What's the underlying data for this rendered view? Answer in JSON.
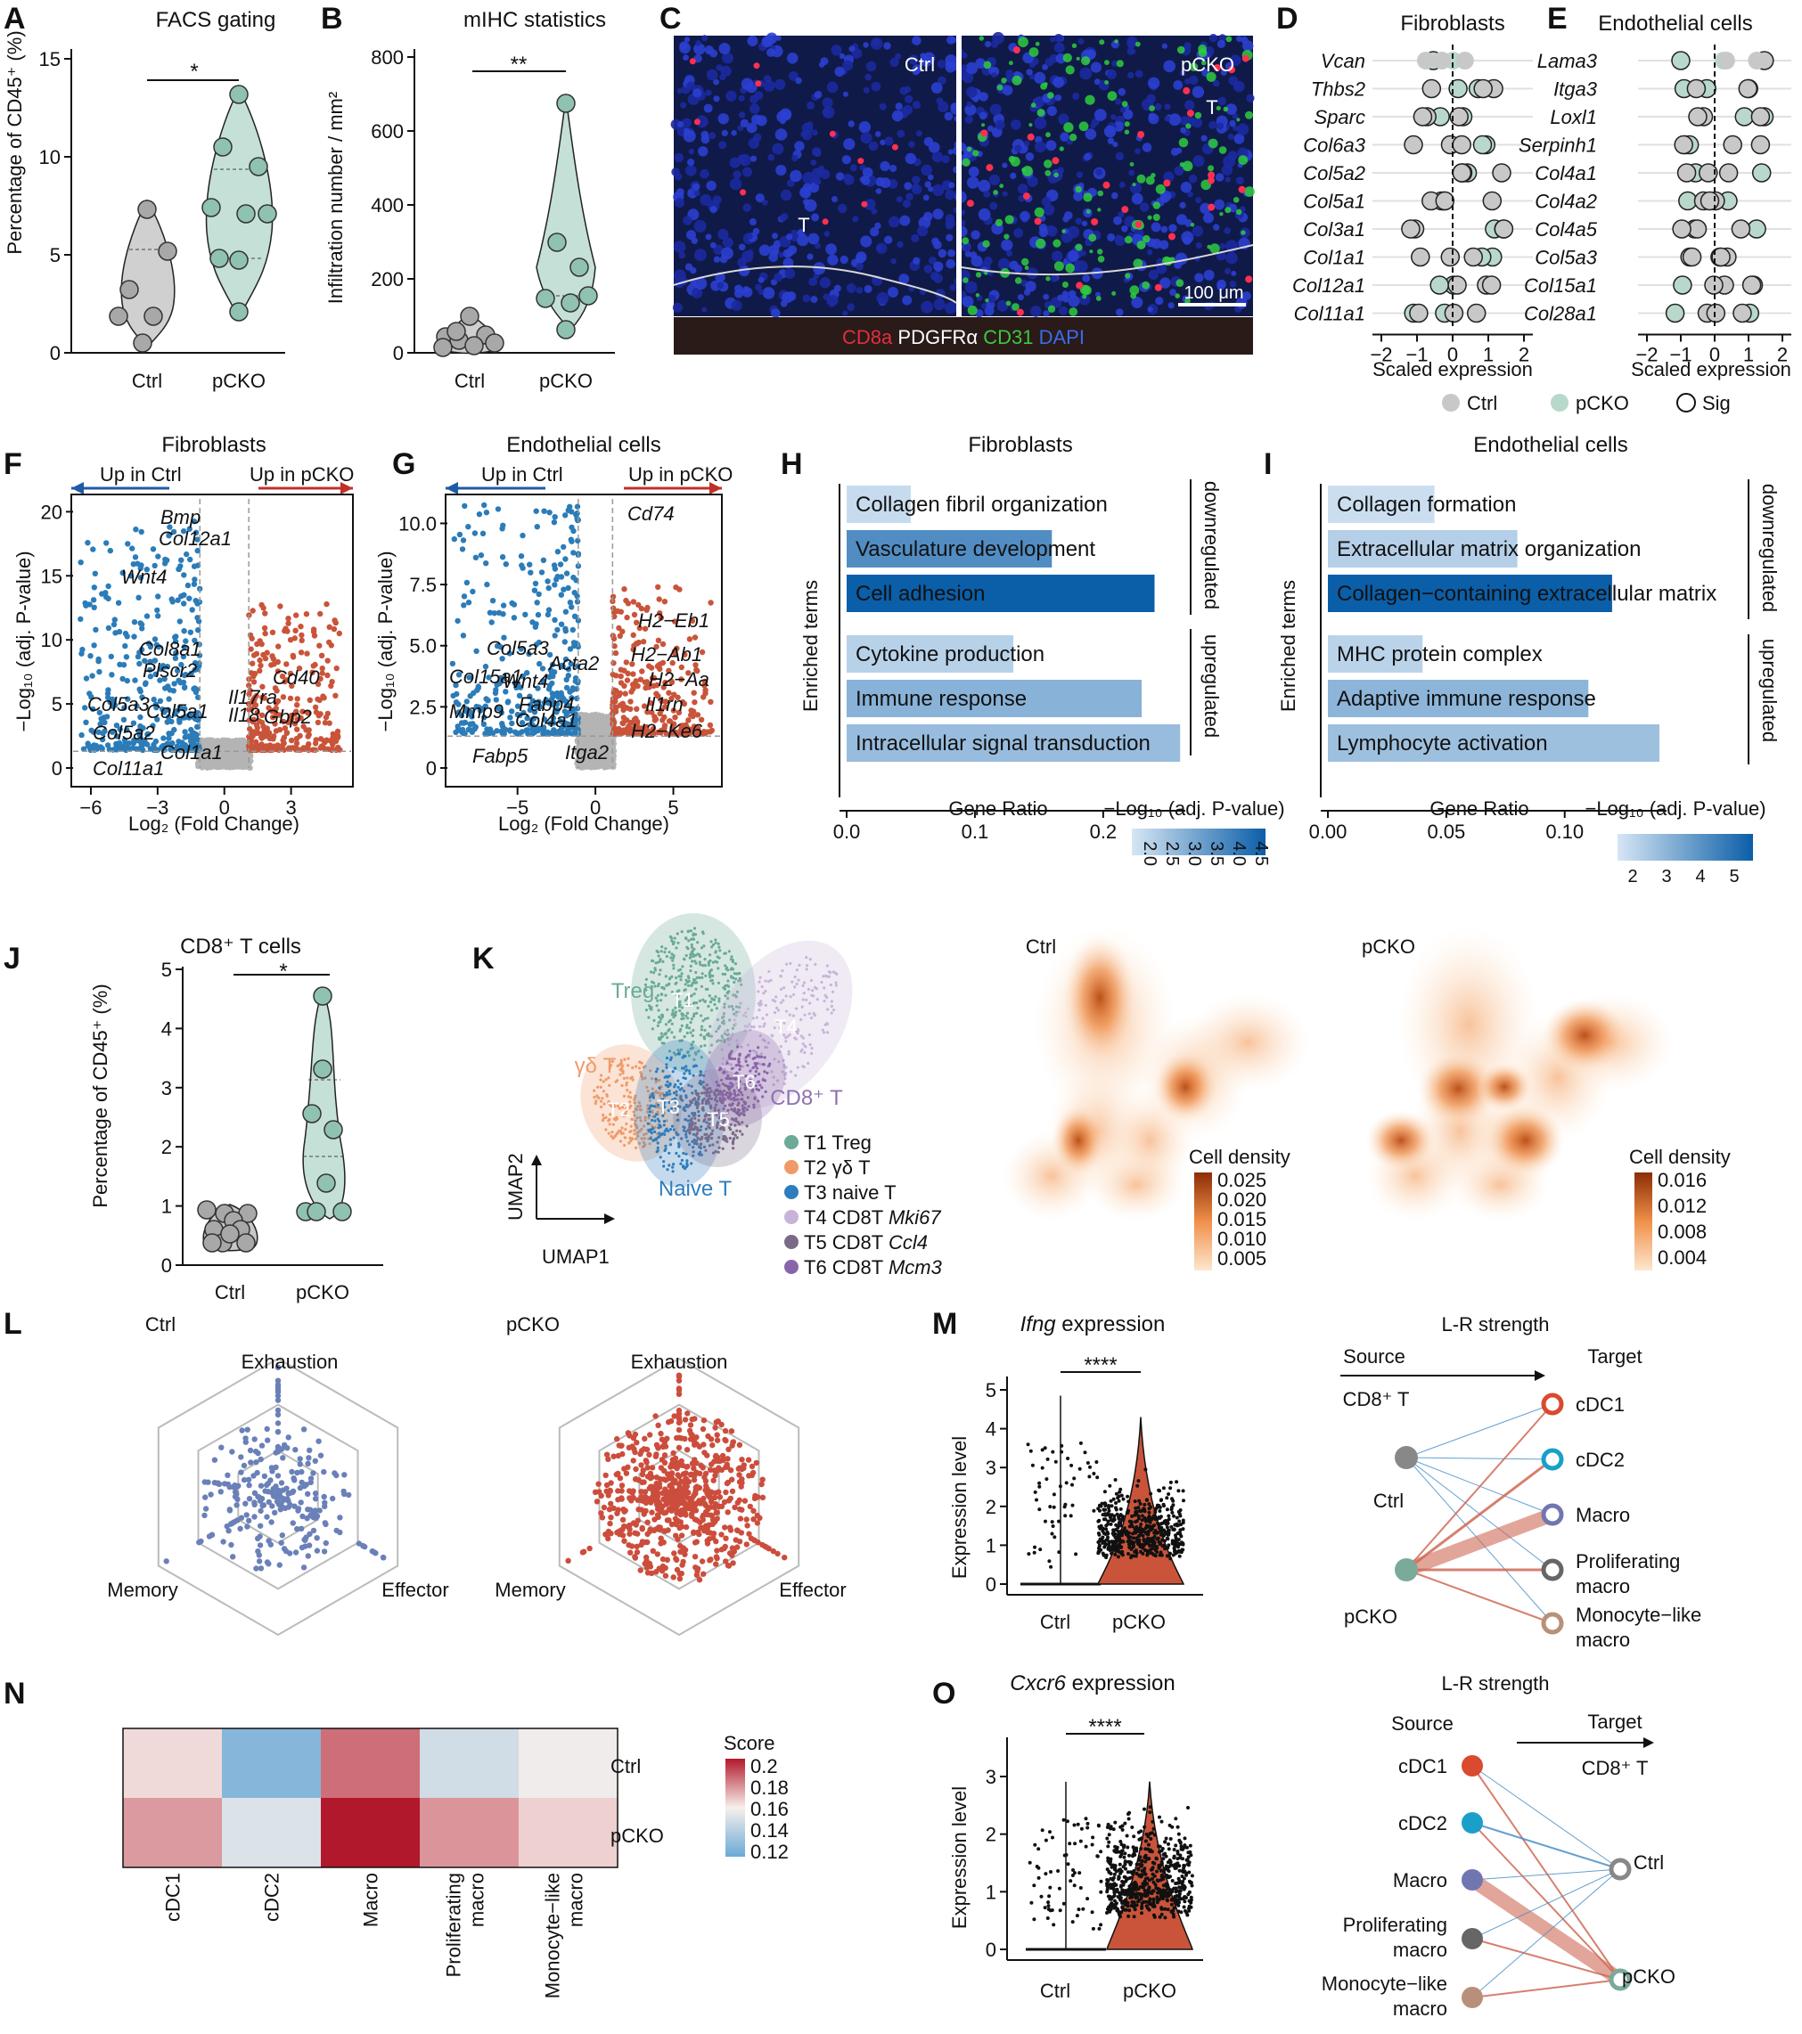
{
  "panels": {
    "A": {
      "letter": "A",
      "title": "FACS gating",
      "ylabel": "Percentage of CD45⁺ (%)",
      "sig": "*",
      "groups": [
        "Ctrl",
        "pCKO"
      ],
      "yticks": [
        "0",
        "5",
        "10",
        "15"
      ]
    },
    "B": {
      "letter": "B",
      "title": "mIHC statistics",
      "ylabel": "Infiltration number / mm²",
      "sig": "**",
      "groups": [
        "Ctrl",
        "pCKO"
      ],
      "yticks": [
        "0",
        "200",
        "400",
        "600",
        "800"
      ]
    },
    "C": {
      "letter": "C",
      "img_left_label": "Ctrl",
      "img_right_label": "pCKO",
      "tumor_label": "T",
      "scale": "100 μm",
      "legend": [
        {
          "text": "CD8a",
          "color": "#e03040"
        },
        {
          "text": "PDGFRα",
          "color": "#ffffff"
        },
        {
          "text": "CD31",
          "color": "#3cc83c"
        },
        {
          "text": "DAPI",
          "color": "#3a6cf0"
        }
      ]
    },
    "D": {
      "letter": "D",
      "title": "Fibroblasts",
      "xlabel": "Scaled expression",
      "genes": [
        "Vcan",
        "Thbs2",
        "Sparc",
        "Col6a3",
        "Col5a2",
        "Col5a1",
        "Col3a1",
        "Col1a1",
        "Col12a1",
        "Col11a1"
      ],
      "xticks": [
        "−2",
        "−1",
        "0",
        "1",
        "2"
      ]
    },
    "E": {
      "letter": "E",
      "title": "Endothelial cells",
      "xlabel": "Scaled expression",
      "genes": [
        "Lama3",
        "Itga3",
        "Loxl1",
        "Serpinh1",
        "Col4a1",
        "Col4a2",
        "Col4a5",
        "Col5a3",
        "Col15a1",
        "Col28a1"
      ],
      "xticks": [
        "−2",
        "−1",
        "0",
        "1",
        "2"
      ]
    },
    "DE_legend": [
      {
        "text": "Ctrl",
        "color": "#c8c8c8"
      },
      {
        "text": "pCKO",
        "color": "#b8d8cc"
      },
      {
        "text": "Sig",
        "color": "#ffffff"
      }
    ],
    "F": {
      "letter": "F",
      "title": "Fibroblasts",
      "left_arrow": "Up in Ctrl",
      "right_arrow": "Up in pCKO",
      "xlabel": "Log₂ (Fold Change)",
      "ylabel": "−Log₁₀ (adj. P-value)",
      "xticks": [
        "−6",
        "−3",
        "0",
        "3"
      ],
      "yticks": [
        "0",
        "5",
        "10",
        "15",
        "20"
      ],
      "genes_left": [
        "Bmp",
        "Col12a1",
        "Wnt4",
        "Col8a1",
        "Plscr2",
        "Col5a3",
        "Col5a1",
        "Col5a2",
        "Col1a1",
        "Col11a1"
      ],
      "genes_right": [
        "Il17ra",
        "Il18",
        "Cd40",
        "Gbp2"
      ]
    },
    "G": {
      "letter": "G",
      "title": "Endothelial cells",
      "left_arrow": "Up in Ctrl",
      "right_arrow": "Up in pCKO",
      "xlabel": "Log₂ (Fold Change)",
      "ylabel": "−Log₁₀ (adj. P-value)",
      "xticks": [
        "−5",
        "0",
        "5"
      ],
      "yticks": [
        "0",
        "2.5",
        "5.0",
        "7.5",
        "10.0"
      ],
      "genes_left": [
        "Col5a3",
        "Acta2",
        "Wnt4",
        "Col15a1",
        "Mmp9",
        "Fabp4",
        "Col4a1",
        "Fabp5",
        "Itga2"
      ],
      "genes_right": [
        "Cd74",
        "H2−Eb1",
        "H2−Ab1",
        "H2−Aa",
        "Il1rn",
        "H2−Ke6"
      ]
    },
    "H": {
      "letter": "H",
      "title": "Fibroblasts",
      "ylabel": "Enriched terms",
      "xlabel": "Gene Ratio",
      "clabel": "−Log₁₀ (adj. P-value)",
      "xticks": [
        "0.0",
        "0.1",
        "0.2"
      ],
      "cticks": [
        "2.0",
        "2.5",
        "3.0",
        "3.5",
        "4.0",
        "4.5"
      ],
      "group_top": "downregulated",
      "group_bottom": "upregulated",
      "terms": [
        {
          "name": "Collagen fibril organization",
          "ratio": 0.05,
          "p": 2.2
        },
        {
          "name": "Vasculature development",
          "ratio": 0.16,
          "p": 3.7
        },
        {
          "name": "Cell adhesion",
          "ratio": 0.24,
          "p": 4.6
        },
        {
          "name": "Cytokine production",
          "ratio": 0.13,
          "p": 2.4
        },
        {
          "name": "Immune response",
          "ratio": 0.23,
          "p": 3.0
        },
        {
          "name": "Intracellular signal transduction",
          "ratio": 0.26,
          "p": 2.8
        }
      ]
    },
    "I": {
      "letter": "I",
      "title": "Endothelial cells",
      "ylabel": "Enriched terms",
      "xlabel": "Gene Ratio",
      "clabel": "−Log₁₀ (adj. P-value)",
      "xticks": [
        "0.00",
        "0.05",
        "0.10"
      ],
      "cticks": [
        "2",
        "3",
        "4",
        "5"
      ],
      "group_top": "downregulated",
      "group_bottom": "upregulated",
      "terms": [
        {
          "name": "Collagen formation",
          "ratio": 0.045,
          "p": 2.2
        },
        {
          "name": "Extracellular matrix organization",
          "ratio": 0.08,
          "p": 2.6
        },
        {
          "name": "Collagen−containing extracellular matrix",
          "ratio": 0.12,
          "p": 5.6
        },
        {
          "name": "MHC protein complex",
          "ratio": 0.04,
          "p": 2.5
        },
        {
          "name": "Adaptive immune response",
          "ratio": 0.11,
          "p": 3.3
        },
        {
          "name": "Lymphocyte activation",
          "ratio": 0.14,
          "p": 3.0
        }
      ]
    },
    "J": {
      "letter": "J",
      "title": "CD8⁺ T cells",
      "ylabel": "Percentage of CD45⁺ (%)",
      "sig": "*",
      "groups": [
        "Ctrl",
        "pCKO"
      ],
      "yticks": [
        "0",
        "1",
        "2",
        "3",
        "4",
        "5"
      ]
    },
    "K": {
      "letter": "K",
      "clusters": [
        {
          "label": "Treg",
          "color": "#6aaa96"
        },
        {
          "label": "γδ T",
          "color": "#f09a68"
        },
        {
          "label": "Naive T",
          "color": "#2f7dbd"
        },
        {
          "label": "CD8⁺ T",
          "color": "#9070b0"
        }
      ],
      "cluster_ids": [
        "T1",
        "T2",
        "T3",
        "T4",
        "T5",
        "T6"
      ],
      "legend": [
        {
          "id": "T1",
          "name": "Treg",
          "gene": "",
          "color": "#6aaa96"
        },
        {
          "id": "T2",
          "name": "γδ T",
          "gene": "",
          "color": "#f09a68"
        },
        {
          "id": "T3",
          "name": "naive T",
          "gene": "",
          "color": "#2f7dbd"
        },
        {
          "id": "T4",
          "name": "CD8T",
          "gene": "Mki67",
          "color": "#c8b4d8"
        },
        {
          "id": "T5",
          "name": "CD8T",
          "gene": "Ccl4",
          "color": "#7a6a88"
        },
        {
          "id": "T6",
          "name": "CD8T",
          "gene": "Mcm3",
          "color": "#8a64a8"
        }
      ],
      "umap1": "UMAP1",
      "umap2": "UMAP2",
      "ctrl_title": "Ctrl",
      "pcko_title": "pCKO",
      "density_label": "Cell density",
      "ctrl_ticks": [
        "0.025",
        "0.020",
        "0.015",
        "0.010",
        "0.005"
      ],
      "pcko_ticks": [
        "0.016",
        "0.012",
        "0.008",
        "0.004"
      ]
    },
    "L": {
      "letter": "L",
      "ctrl_title": "Ctrl",
      "pcko_title": "pCKO",
      "axes": [
        "Exhaustion",
        "Memory",
        "Effector"
      ],
      "ctrl_color": "#6a80b8",
      "pcko_color": "#cc4d3c"
    },
    "M": {
      "letter": "M",
      "gene": "Ifng",
      "title_suffix": " expression",
      "ylabel": "Expression level",
      "sig": "****",
      "groups": [
        "Ctrl",
        "pCKO"
      ],
      "yticks": [
        "0",
        "1",
        "2",
        "3",
        "4",
        "5"
      ],
      "lr_title": "L-R strength",
      "source": "Source",
      "target": "Target",
      "source_cell": "CD8⁺ T",
      "left_nodes": [
        "Ctrl",
        "pCKO"
      ],
      "right_nodes": [
        {
          "label": "cDC1",
          "color": "#d94a2e"
        },
        {
          "label": "cDC2",
          "color": "#1aa0c8"
        },
        {
          "label": "Macro",
          "color": "#7076b0"
        },
        {
          "label": "Proliferating macro",
          "color": "#666666"
        },
        {
          "label": "Monocyte−like macro",
          "color": "#b8907a"
        }
      ]
    },
    "N": {
      "letter": "N",
      "rows": [
        "Ctrl",
        "pCKO"
      ],
      "cols": [
        "cDC1",
        "cDC2",
        "Macro",
        "Proliferating macro",
        "Monocyte−like macro"
      ],
      "values": [
        [
          0.164,
          0.128,
          0.184,
          0.149,
          0.158
        ],
        [
          0.176,
          0.152,
          0.205,
          0.177,
          0.166
        ]
      ],
      "legend_title": "Score",
      "legend_ticks": [
        "0.2",
        "0.18",
        "0.16",
        "0.14",
        "0.12"
      ]
    },
    "O": {
      "letter": "O",
      "gene": "Cxcr6",
      "title_suffix": " expression",
      "ylabel": "Expression level",
      "sig": "****",
      "groups": [
        "Ctrl",
        "pCKO"
      ],
      "yticks": [
        "0",
        "1",
        "2",
        "3"
      ],
      "lr_title": "L-R strength",
      "source": "Source",
      "target": "Target",
      "target_cell": "CD8⁺ T",
      "left_nodes": [
        {
          "label": "cDC1",
          "color": "#d94a2e"
        },
        {
          "label": "cDC2",
          "color": "#1aa0c8"
        },
        {
          "label": "Macro",
          "color": "#7076b0"
        },
        {
          "label": "Proliferating macro",
          "color": "#666666"
        },
        {
          "label": "Monocyte−like macro",
          "color": "#b8907a"
        }
      ],
      "right_nodes": [
        "Ctrl",
        "pCKO"
      ]
    }
  }
}
